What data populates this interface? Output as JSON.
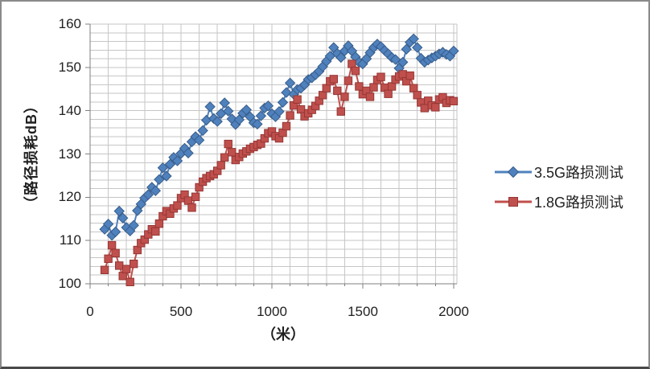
{
  "chart_data": {
    "type": "line",
    "title": "",
    "xlabel": "（米）",
    "ylabel": "（路径损耗dB）",
    "xlim": [
      0,
      2018
    ],
    "ylim": [
      100,
      160
    ],
    "x_tick_labels": [
      "0",
      "500",
      "1000",
      "1500",
      "2000"
    ],
    "x_tick_values": [
      0,
      500,
      1000,
      1500,
      2000
    ],
    "y_tick_labels": [
      "160",
      "150",
      "140",
      "130",
      "120",
      "110",
      "100"
    ],
    "y_tick_values": [
      160,
      150,
      140,
      130,
      120,
      110,
      100
    ],
    "x_minor_step": 100,
    "y_minor_step": 2,
    "grid": true,
    "legend_position": "right",
    "grid_color": "#c6c6c6",
    "axis_color": "#7f7f7f",
    "x": [
      80,
      100,
      120,
      140,
      160,
      180,
      200,
      220,
      240,
      260,
      280,
      300,
      320,
      340,
      360,
      380,
      400,
      420,
      440,
      460,
      480,
      500,
      520,
      540,
      560,
      580,
      600,
      620,
      640,
      660,
      680,
      700,
      720,
      740,
      760,
      780,
      800,
      820,
      840,
      860,
      880,
      900,
      920,
      940,
      960,
      980,
      1000,
      1020,
      1040,
      1060,
      1080,
      1100,
      1120,
      1140,
      1160,
      1180,
      1200,
      1220,
      1240,
      1260,
      1280,
      1300,
      1320,
      1340,
      1360,
      1380,
      1400,
      1420,
      1440,
      1460,
      1480,
      1500,
      1520,
      1540,
      1560,
      1580,
      1600,
      1620,
      1640,
      1660,
      1680,
      1700,
      1720,
      1740,
      1760,
      1780,
      1800,
      1820,
      1840,
      1860,
      1880,
      1900,
      1920,
      1940,
      1960,
      1980,
      2000
    ],
    "series": [
      {
        "name": "3.5G路损测试",
        "marker": "diamond",
        "color": "#4f81bd",
        "border_color": "#385d8a",
        "values": [
          112.6,
          113.8,
          111.2,
          112.0,
          116.8,
          115.2,
          113.0,
          112.2,
          113.5,
          116.9,
          118.4,
          119.8,
          120.6,
          122.3,
          121.5,
          124.1,
          126.8,
          124.9,
          127.6,
          129.2,
          128.4,
          130.1,
          131.3,
          130.2,
          132.8,
          134.0,
          133.2,
          135.4,
          137.8,
          140.9,
          138.2,
          137.5,
          139.3,
          141.8,
          139.9,
          138.1,
          136.8,
          137.9,
          139.4,
          140.2,
          138.6,
          137.2,
          136.9,
          138.8,
          140.6,
          141.1,
          139.3,
          138.6,
          139.8,
          141.9,
          144.2,
          146.4,
          143.8,
          144.9,
          145.2,
          146.0,
          147.2,
          147.6,
          148.3,
          149.1,
          150.2,
          151.4,
          152.6,
          154.6,
          153.2,
          152.3,
          153.8,
          155.0,
          153.8,
          152.4,
          151.2,
          150.8,
          152.0,
          153.4,
          154.6,
          155.4,
          154.8,
          153.9,
          153.1,
          152.3,
          151.8,
          149.8,
          151.2,
          154.2,
          155.8,
          156.6,
          154.6,
          152.1,
          151.2,
          151.7,
          152.2,
          152.6,
          153.1,
          153.5,
          153.0,
          152.6,
          153.8
        ]
      },
      {
        "name": "1.8G路损测试",
        "marker": "square",
        "color": "#c0504d",
        "border_color": "#943634",
        "values": [
          103.2,
          105.8,
          108.9,
          107.1,
          104.2,
          101.8,
          103.4,
          100.4,
          104.6,
          107.8,
          109.4,
          110.2,
          111.4,
          112.6,
          112.1,
          113.9,
          115.6,
          116.8,
          116.2,
          117.4,
          118.1,
          119.8,
          120.6,
          119.2,
          117.6,
          120.1,
          122.3,
          123.6,
          124.4,
          124.9,
          125.3,
          126.1,
          127.4,
          129.2,
          132.3,
          130.4,
          128.6,
          129.3,
          130.1,
          130.6,
          131.2,
          131.6,
          132.1,
          132.4,
          133.6,
          134.8,
          135.2,
          134.1,
          133.6,
          134.9,
          136.4,
          138.9,
          141.2,
          142.6,
          140.3,
          138.7,
          139.4,
          140.2,
          141.1,
          142.3,
          143.6,
          145.2,
          146.8,
          147.3,
          144.6,
          139.8,
          143.2,
          146.9,
          150.8,
          149.2,
          145.6,
          143.8,
          144.6,
          143.2,
          145.4,
          147.1,
          147.8,
          145.3,
          143.9,
          145.6,
          147.2,
          147.9,
          148.4,
          146.8,
          148.1,
          145.2,
          143.6,
          141.9,
          140.6,
          142.3,
          141.2,
          140.8,
          142.6,
          143.1,
          141.8,
          142.4,
          142.2
        ]
      }
    ]
  }
}
